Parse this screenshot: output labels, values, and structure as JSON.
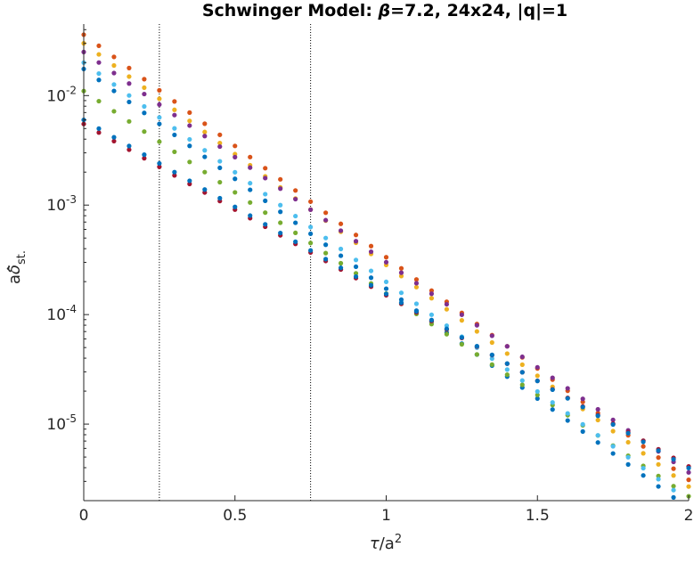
{
  "chart_data": {
    "type": "scatter",
    "title": "Schwinger Model: β=7.2, 24x24, |q|=1",
    "title_parts": [
      "Schwinger Model: ",
      "β",
      "=7.2, 24x24, |q|=1"
    ],
    "xlabel": "τ/a²",
    "xlabel_parts": {
      "tau": "τ",
      "rest": "/a",
      "sup": "2"
    },
    "ylabel": "aδ̂ st.",
    "ylabel_parts": {
      "a": "a",
      "delta": "δ",
      "hat": "̂",
      "sub": "st."
    },
    "xlim": [
      0,
      2
    ],
    "ylim": [
      2e-06,
      0.045
    ],
    "yscale": "log",
    "grid": false,
    "x_ticks": [
      0,
      0.5,
      1,
      1.5,
      2
    ],
    "x_tick_labels": [
      "0",
      "0.5",
      "1",
      "1.5",
      "2"
    ],
    "y_ticks": [
      1e-05,
      0.0001,
      0.001,
      0.01
    ],
    "y_tick_labels": [
      {
        "base": "10",
        "exp": "-5"
      },
      {
        "base": "10",
        "exp": "-4"
      },
      {
        "base": "10",
        "exp": "-3"
      },
      {
        "base": "10",
        "exp": "-2"
      }
    ],
    "vlines": [
      0.25,
      0.75
    ],
    "x": [
      0.0,
      0.05,
      0.1,
      0.15,
      0.2,
      0.25,
      0.3,
      0.35,
      0.4,
      0.45,
      0.5,
      0.55,
      0.6,
      0.65,
      0.7,
      0.75,
      0.8,
      0.85,
      0.9,
      0.95,
      1.0,
      1.05,
      1.1,
      1.15,
      1.2,
      1.25,
      1.3,
      1.35,
      1.4,
      1.45,
      1.5,
      1.55,
      1.6,
      1.65,
      1.7,
      1.75,
      1.8,
      1.85,
      1.9,
      1.95,
      2.0
    ],
    "series": [
      {
        "color": "#0072BD",
        "y0": 0.0175,
        "rate": 4.62
      },
      {
        "color": "#D95319",
        "y0": 0.036,
        "rate": 4.68
      },
      {
        "color": "#EDB120",
        "y0": 0.03,
        "rate": 4.66
      },
      {
        "color": "#7E2F8E",
        "y0": 0.025,
        "rate": 4.42
      },
      {
        "color": "#77AC30",
        "y0": 0.011,
        "rate": 4.26
      },
      {
        "color": "#4DBEEE",
        "y0": 0.02,
        "rate": 4.61
      },
      {
        "color": "#A2142F",
        "y0": 0.0055,
        "rate": 3.6
      },
      {
        "color": "#0072BD",
        "y0": 0.006,
        "rate": 3.66
      }
    ]
  }
}
